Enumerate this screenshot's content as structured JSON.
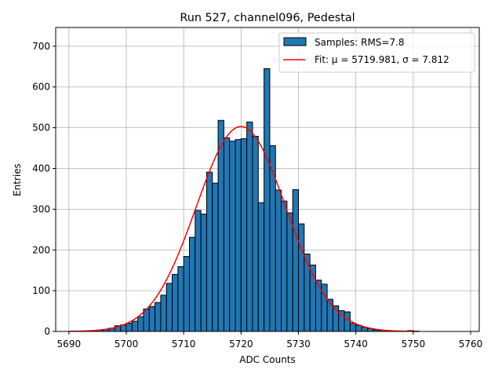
{
  "chart_data": {
    "type": "bar",
    "title": "Run 527, channel096, Pedestal",
    "xlabel": "ADC Counts",
    "ylabel": "Entries",
    "xlim": [
      5687.7,
      5761.5
    ],
    "ylim": [
      0,
      746
    ],
    "xticks": [
      5690,
      5700,
      5710,
      5720,
      5730,
      5740,
      5750,
      5760
    ],
    "yticks": [
      0,
      100,
      200,
      300,
      400,
      500,
      600,
      700
    ],
    "grid": true,
    "legend": {
      "placement": "top-right",
      "entries": [
        {
          "kind": "patch",
          "label": "Samples: RMS=7.8"
        },
        {
          "kind": "line",
          "label": "Fit: μ = 5719.981, σ = 7.812"
        }
      ]
    },
    "colors": {
      "bars": "#1f77b4",
      "bar_edge": "#000000",
      "fit": "#ff0000",
      "grid": "#b0b0b0"
    },
    "series": [
      {
        "name": "Samples: RMS=7.8",
        "bin_width": 1,
        "bin_starts": [
          5690,
          5691,
          5692,
          5693,
          5694,
          5695,
          5696,
          5697,
          5698,
          5699,
          5700,
          5701,
          5702,
          5703,
          5704,
          5705,
          5706,
          5707,
          5708,
          5709,
          5710,
          5711,
          5712,
          5713,
          5714,
          5715,
          5716,
          5717,
          5718,
          5719,
          5720,
          5721,
          5722,
          5723,
          5724,
          5725,
          5726,
          5727,
          5728,
          5729,
          5730,
          5731,
          5732,
          5733,
          5734,
          5735,
          5736,
          5737,
          5738,
          5739,
          5740,
          5741,
          5742,
          5743,
          5744,
          5745,
          5746,
          5747,
          5748,
          5749,
          5750,
          5751
        ],
        "values": [
          0,
          0,
          0,
          1,
          2,
          3,
          5,
          8,
          14,
          16,
          20,
          25,
          36,
          55,
          61,
          71,
          89,
          118,
          140,
          159,
          184,
          231,
          297,
          288,
          391,
          364,
          518,
          475,
          467,
          471,
          473,
          514,
          479,
          316,
          645,
          456,
          347,
          320,
          291,
          348,
          264,
          190,
          163,
          126,
          116,
          79,
          63,
          51,
          48,
          20,
          15,
          10,
          7,
          4,
          3,
          2,
          1,
          1,
          1,
          2,
          1,
          0
        ]
      },
      {
        "name": "Fit: μ = 5719.981, σ = 7.812",
        "mu": 5719.981,
        "sigma": 7.812,
        "amplitude": 503,
        "x_range": [
          5690,
          5751
        ]
      }
    ]
  }
}
